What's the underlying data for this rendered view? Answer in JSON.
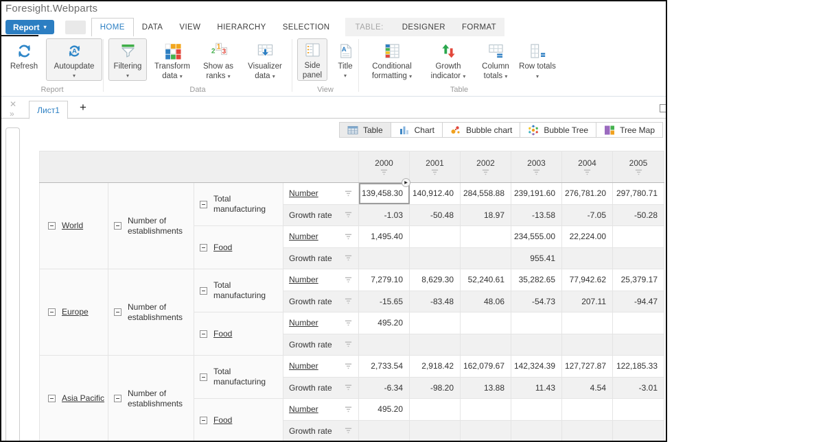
{
  "window": {
    "title": "Foresight.Webparts"
  },
  "menu": {
    "report_label": "Report",
    "tabs": [
      "HOME",
      "DATA",
      "VIEW",
      "HIERARCHY",
      "SELECTION"
    ],
    "active_tab": "HOME",
    "context_label": "TABLE:",
    "context_tabs": [
      "DESIGNER",
      "FORMAT"
    ]
  },
  "ribbon": {
    "groups": [
      {
        "label": "Report",
        "buttons": [
          {
            "label": "Refresh",
            "icon": "refresh-icon",
            "dropdown": false
          },
          {
            "label": "Autoupdate",
            "icon": "autoupdate-icon",
            "dropdown": true,
            "boxed": true
          }
        ]
      },
      {
        "label": "Data",
        "buttons": [
          {
            "label": "Filtering",
            "icon": "filtering-icon",
            "dropdown": true,
            "boxed": true
          },
          {
            "label": "Transform data",
            "icon": "transform-data-icon",
            "dropdown": true
          },
          {
            "label": "Show as ranks",
            "icon": "show-as-ranks-icon",
            "dropdown": true
          },
          {
            "label": "Visualizer data",
            "icon": "visualizer-data-icon",
            "dropdown": true
          }
        ]
      },
      {
        "label": "View",
        "buttons": [
          {
            "label": "Side panel",
            "icon": "side-panel-icon",
            "dropdown": false,
            "boxed": true
          },
          {
            "label": "Title",
            "icon": "title-icon",
            "dropdown": true
          }
        ]
      },
      {
        "label": "Table",
        "buttons": [
          {
            "label": "Conditional formatting",
            "icon": "conditional-formatting-icon",
            "dropdown": true
          },
          {
            "label": "Growth indicator",
            "icon": "growth-indicator-icon",
            "dropdown": true
          },
          {
            "label": "Column totals",
            "icon": "column-totals-icon",
            "dropdown": true
          },
          {
            "label": "Row totals",
            "icon": "row-totals-icon",
            "dropdown": true
          }
        ]
      }
    ]
  },
  "sheet": {
    "tabs": [
      {
        "label": "Лист1",
        "active": true
      }
    ],
    "add_label": "+"
  },
  "view_modes": {
    "selected": "Table",
    "items": [
      {
        "label": "Table",
        "icon": "table-icon"
      },
      {
        "label": "Chart",
        "icon": "chart-icon"
      },
      {
        "label": "Bubble chart",
        "icon": "bubble-chart-icon"
      },
      {
        "label": "Bubble Tree",
        "icon": "bubble-tree-icon"
      },
      {
        "label": "Tree Map",
        "icon": "tree-map-icon"
      }
    ]
  },
  "table": {
    "years": [
      "2000",
      "2001",
      "2002",
      "2003",
      "2004",
      "2005"
    ],
    "selected_cell": {
      "group": 0,
      "item": 0,
      "measure": 0,
      "col": 0
    },
    "groups": [
      {
        "region": "World",
        "indicator": "Number of establishments",
        "items": [
          {
            "label": "Total manufacturing",
            "link": false,
            "measures": [
              {
                "label": "Number",
                "link": true,
                "values": [
                  "139,458.30",
                  "140,912.40",
                  "284,558.88",
                  "239,191.60",
                  "276,781.20",
                  "297,780.71"
                ]
              },
              {
                "label": "Growth rate",
                "link": false,
                "values": [
                  "-1.03",
                  "-50.48",
                  "18.97",
                  "-13.58",
                  "-7.05",
                  "-50.28"
                ]
              }
            ]
          },
          {
            "label": "Food",
            "link": true,
            "measures": [
              {
                "label": "Number",
                "link": true,
                "values": [
                  "1,495.40",
                  "",
                  "",
                  "234,555.00",
                  "22,224.00",
                  ""
                ]
              },
              {
                "label": "Growth rate",
                "link": false,
                "values": [
                  "",
                  "",
                  "",
                  "955.41",
                  "",
                  ""
                ]
              }
            ]
          }
        ]
      },
      {
        "region": "Europe",
        "indicator": "Number of establishments",
        "items": [
          {
            "label": "Total manufacturing",
            "link": false,
            "measures": [
              {
                "label": "Number",
                "link": true,
                "values": [
                  "7,279.10",
                  "8,629.30",
                  "52,240.61",
                  "35,282.65",
                  "77,942.62",
                  "25,379.17"
                ]
              },
              {
                "label": "Growth rate",
                "link": false,
                "values": [
                  "-15.65",
                  "-83.48",
                  "48.06",
                  "-54.73",
                  "207.11",
                  "-94.47"
                ]
              }
            ]
          },
          {
            "label": "Food",
            "link": true,
            "measures": [
              {
                "label": "Number",
                "link": true,
                "values": [
                  "495.20",
                  "",
                  "",
                  "",
                  "",
                  ""
                ]
              },
              {
                "label": "Growth rate",
                "link": false,
                "values": [
                  "",
                  "",
                  "",
                  "",
                  "",
                  ""
                ]
              }
            ]
          }
        ]
      },
      {
        "region": "Asia Pacific",
        "indicator": "Number of establishments",
        "items": [
          {
            "label": "Total manufacturing",
            "link": false,
            "measures": [
              {
                "label": "Number",
                "link": true,
                "values": [
                  "2,733.54",
                  "2,918.42",
                  "162,079.67",
                  "142,324.39",
                  "127,727.87",
                  "122,185.33"
                ]
              },
              {
                "label": "Growth rate",
                "link": false,
                "values": [
                  "-6.34",
                  "-98.20",
                  "13.88",
                  "11.43",
                  "4.54",
                  "-3.01"
                ]
              }
            ]
          },
          {
            "label": "Food",
            "link": true,
            "measures": [
              {
                "label": "Number",
                "link": true,
                "values": [
                  "495.20",
                  "",
                  "",
                  "",
                  "",
                  ""
                ]
              },
              {
                "label": "Growth rate",
                "link": false,
                "values": [
                  "",
                  "",
                  "",
                  "",
                  "",
                  ""
                ]
              }
            ]
          }
        ]
      }
    ]
  },
  "colors": {
    "accent": "#2b7fc3",
    "green": "#3fae49",
    "red": "#e2473b",
    "orange": "#f0a11e"
  }
}
